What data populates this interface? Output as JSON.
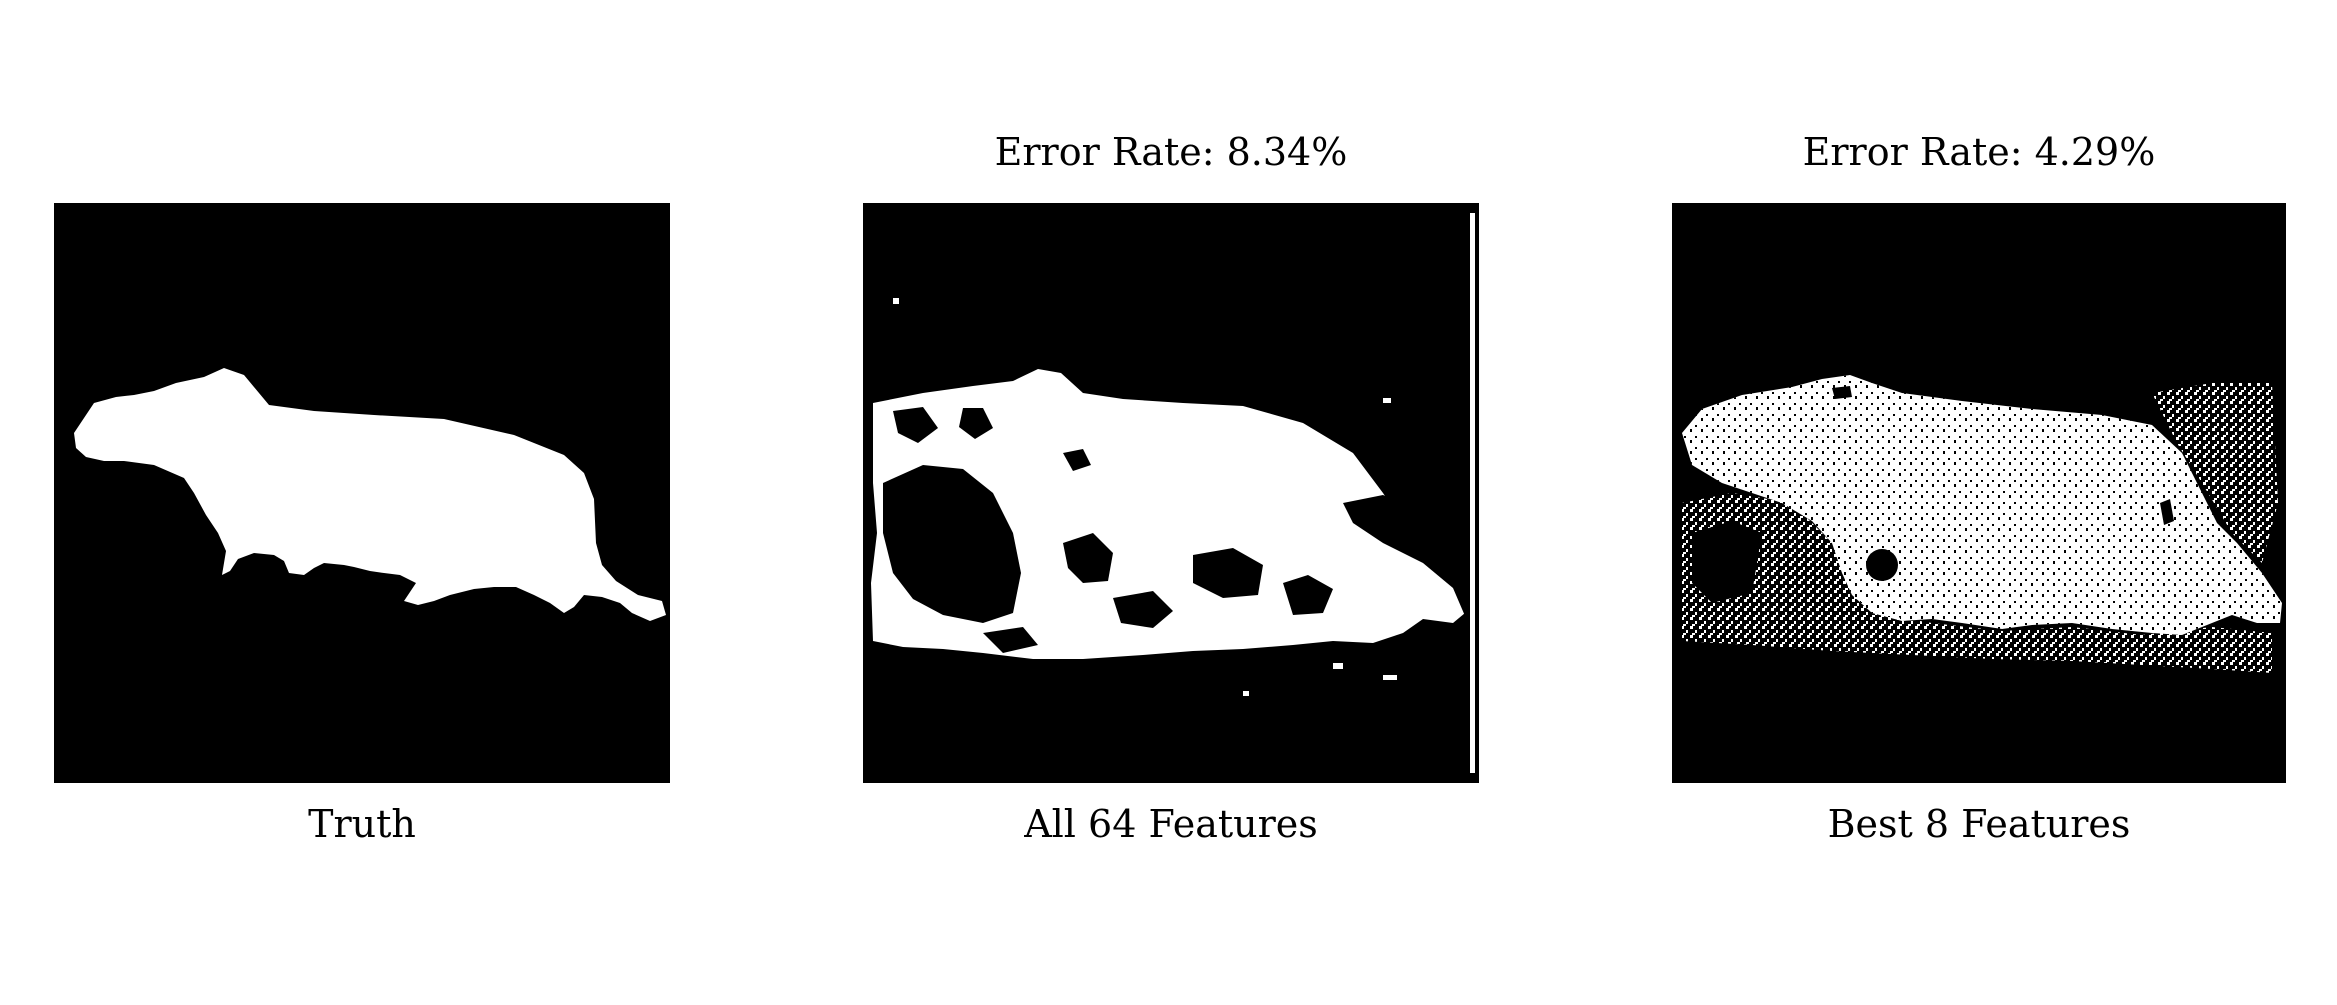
{
  "figure": {
    "panels": [
      {
        "title": "",
        "caption": "Truth",
        "type": "ground-truth-mask"
      },
      {
        "title": "Error Rate: 8.34%",
        "caption": "All 64 Features",
        "type": "segmentation-result",
        "error_rate_percent": 8.34
      },
      {
        "title": "Error Rate: 4.29%",
        "caption": "Best 8 Features",
        "type": "segmentation-result",
        "error_rate_percent": 4.29
      }
    ],
    "colors": {
      "foreground": "#ffffff",
      "background": "#000000"
    }
  }
}
